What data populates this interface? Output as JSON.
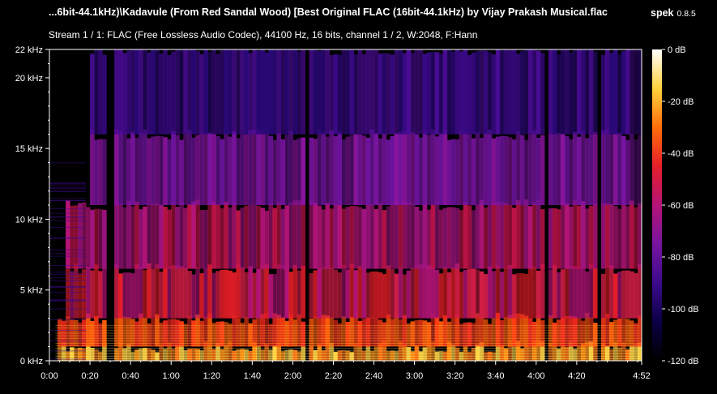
{
  "header": {
    "file_title": "...6bit-44.1kHz)\\Kadavule (From Red Sandal Wood) [Best Original  FLAC (16bit-44.1kHz) by Vijay Prakash Musical.flac",
    "app_name": "spek",
    "app_version": "0.8.5",
    "stream_info": "Stream 1 / 1: FLAC (Free Lossless Audio Codec), 44100 Hz, 16 bits, channel 1 / 2, W:2048, F:Hann"
  },
  "chart_data": {
    "type": "heatmap",
    "x_label": "",
    "y_label": "",
    "x_range_seconds": [
      0,
      292
    ],
    "y_range_khz": [
      0,
      22
    ],
    "db_range": [
      -120,
      0
    ],
    "x_ticks": [
      {
        "label": "0:00",
        "seconds": 0
      },
      {
        "label": "0:20",
        "seconds": 20
      },
      {
        "label": "0:40",
        "seconds": 40
      },
      {
        "label": "1:00",
        "seconds": 60
      },
      {
        "label": "1:20",
        "seconds": 80
      },
      {
        "label": "1:40",
        "seconds": 100
      },
      {
        "label": "2:00",
        "seconds": 120
      },
      {
        "label": "2:20",
        "seconds": 140
      },
      {
        "label": "2:40",
        "seconds": 160
      },
      {
        "label": "3:00",
        "seconds": 180
      },
      {
        "label": "3:20",
        "seconds": 200
      },
      {
        "label": "3:40",
        "seconds": 220
      },
      {
        "label": "4:00",
        "seconds": 240
      },
      {
        "label": "4:20",
        "seconds": 260
      },
      {
        "label": "4:52",
        "seconds": 292
      }
    ],
    "y_ticks": [
      {
        "label": "22 kHz",
        "khz": 22
      },
      {
        "label": "20 kHz",
        "khz": 20
      },
      {
        "label": "15 kHz",
        "khz": 15
      },
      {
        "label": "10 kHz",
        "khz": 10
      },
      {
        "label": "5 kHz",
        "khz": 5
      },
      {
        "label": "0 kHz",
        "khz": 0
      }
    ],
    "colorbar_ticks": [
      {
        "label": "0 dB",
        "db": 0
      },
      {
        "label": "-20 dB",
        "db": -20
      },
      {
        "label": "-40 dB",
        "db": -40
      },
      {
        "label": "-60 dB",
        "db": -60
      },
      {
        "label": "-80 dB",
        "db": -80
      },
      {
        "label": "-100 dB",
        "db": -100
      },
      {
        "label": "-120 dB",
        "db": -120
      }
    ],
    "colormap": [
      "#000000",
      "#0a0046",
      "#3c0a8c",
      "#7814a0",
      "#b41478",
      "#e61e28",
      "#ff6e0a",
      "#ffd23c",
      "#ffffff"
    ],
    "quiet_intervals_seconds": [
      [
        0,
        3
      ],
      [
        28,
        32
      ],
      [
        125,
        127
      ],
      [
        157,
        158
      ],
      [
        244,
        245
      ],
      [
        269,
        272
      ]
    ]
  }
}
